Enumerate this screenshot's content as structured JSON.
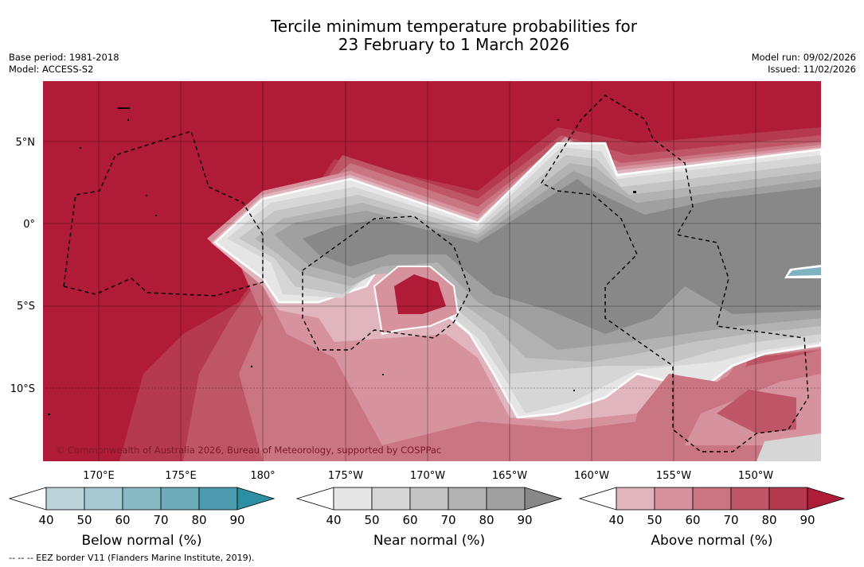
{
  "title_line1": "Tercile minimum temperature probabilities for",
  "title_line2": "23 February to 1 March 2026",
  "base_period": "Base period: 1981-2018",
  "model": "Model: ACCESS-S2",
  "model_run": "Model run: 09/02/2026",
  "issued": "Issued: 11/02/2026",
  "credit": "© Commonwealth of Australia 2026, Bureau of Meteorology, supported by COSPPac",
  "footnote": "--  --  -- EEZ border V11 (Flanders Marine Institute, 2019).",
  "lat_labels": [
    "5°N",
    "0°",
    "5°S",
    "10°S"
  ],
  "lon_labels": [
    "170°E",
    "175°E",
    "180°",
    "175°W",
    "170°W",
    "165°W",
    "160°W",
    "155°W",
    "150°W"
  ],
  "colorbars": [
    {
      "title": "Below normal (%)",
      "ticks": [
        "40",
        "50",
        "60",
        "70",
        "80",
        "90"
      ],
      "colors": [
        "#bdd3da",
        "#a8c9d1",
        "#8ab9c6",
        "#6eabba",
        "#4c9cae",
        "#2c8fa4"
      ]
    },
    {
      "title": "Near normal (%)",
      "ticks": [
        "40",
        "50",
        "60",
        "70",
        "80",
        "90"
      ],
      "colors": [
        "#e6e6e6",
        "#d6d6d6",
        "#c4c4c4",
        "#b2b2b2",
        "#a0a0a0",
        "#888888"
      ]
    },
    {
      "title": "Above normal (%)",
      "ticks": [
        "40",
        "50",
        "60",
        "70",
        "80",
        "90"
      ],
      "colors": [
        "#e1b5bd",
        "#d6939e",
        "#ca7582",
        "#bf5667",
        "#b63a4f",
        "#b01c38"
      ]
    }
  ],
  "colors": {
    "above_max": "#b01c38",
    "near_max": "#878787",
    "below_feature": "#7fb3c2"
  }
}
